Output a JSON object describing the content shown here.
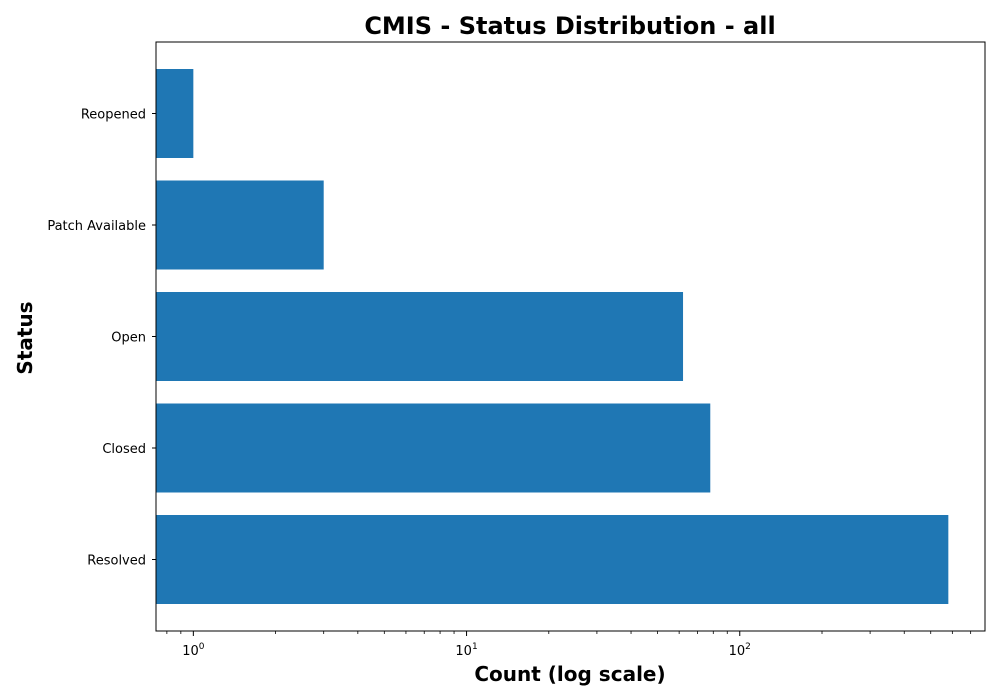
{
  "chart_data": {
    "type": "bar",
    "orientation": "horizontal",
    "title": "CMIS - Status Distribution - all",
    "xlabel": "Count (log scale)",
    "ylabel": "Status",
    "xscale": "log",
    "xlim": [
      0.73,
      790
    ],
    "x_ticks": [
      {
        "value": 1,
        "base": "10",
        "exp": "0"
      },
      {
        "value": 10,
        "base": "10",
        "exp": "1"
      },
      {
        "value": 100,
        "base": "10",
        "exp": "2"
      }
    ],
    "categories": [
      "Reopened",
      "Patch Available",
      "Open",
      "Closed",
      "Resolved"
    ],
    "values": [
      1,
      3,
      62,
      78,
      580
    ],
    "bar_color": "#1f77b4",
    "grid": false,
    "legend": "none"
  }
}
